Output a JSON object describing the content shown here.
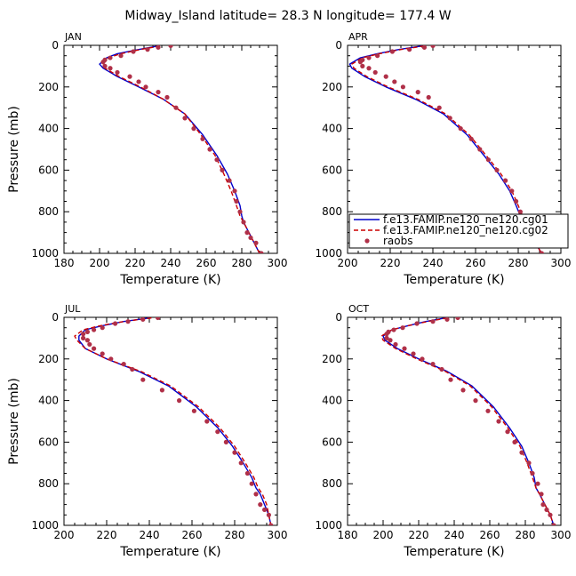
{
  "figure": {
    "title": "Midway_Island  latitude= 28.3 N longitude= 177.4 W"
  },
  "colors": {
    "model1": "#0000cc",
    "model2": "#cc0000",
    "raobs": "#b03048"
  },
  "chart_data": [
    {
      "type": "line",
      "title": "JAN",
      "xlabel": "Temperature (K)",
      "ylabel": "Pressure (mb)",
      "xlim": [
        180,
        300
      ],
      "ylim": [
        1000,
        0
      ],
      "xticks": [
        180,
        200,
        220,
        240,
        260,
        280,
        300
      ],
      "yticks": [
        0,
        200,
        400,
        600,
        800,
        1000
      ],
      "legend": null,
      "series": [
        {
          "name": "f.e13.FAMIP.ne120_ne120.cg01",
          "style": "solid",
          "x": [
            233,
            222,
            210,
            204,
            200,
            202,
            210,
            222,
            236,
            248,
            258,
            266,
            272,
            276,
            279,
            280,
            281,
            284,
            287,
            290
          ],
          "y": [
            3,
            20,
            40,
            60,
            90,
            110,
            150,
            200,
            260,
            330,
            430,
            530,
            620,
            700,
            770,
            820,
            850,
            900,
            950,
            1000
          ]
        },
        {
          "name": "f.e13.FAMIP.ne120_ne120.cg02",
          "style": "dashed",
          "x": [
            234,
            223,
            212,
            205,
            202,
            203,
            211,
            223,
            236,
            248,
            257,
            265,
            270,
            274,
            277,
            279,
            281,
            284,
            287,
            290
          ],
          "y": [
            3,
            20,
            40,
            60,
            90,
            110,
            150,
            200,
            260,
            330,
            430,
            530,
            620,
            700,
            770,
            820,
            850,
            900,
            950,
            1000
          ]
        },
        {
          "name": "raobs",
          "style": "dots",
          "x": [
            240,
            233,
            227,
            219,
            212,
            206,
            203,
            202,
            203,
            206,
            210,
            217,
            222,
            226,
            233,
            238,
            243,
            248,
            253,
            258,
            262,
            266,
            269,
            273,
            276,
            277,
            279,
            281,
            283,
            285,
            288,
            291
          ],
          "y": [
            2,
            10,
            20,
            30,
            50,
            60,
            70,
            80,
            100,
            110,
            130,
            150,
            175,
            200,
            225,
            250,
            300,
            350,
            400,
            450,
            500,
            550,
            600,
            650,
            700,
            750,
            800,
            850,
            900,
            925,
            950,
            1000
          ]
        }
      ]
    },
    {
      "type": "line",
      "title": "APR",
      "xlabel": "Temperature (K)",
      "ylabel": "",
      "xlim": [
        200,
        300
      ],
      "ylim": [
        1000,
        0
      ],
      "xticks": [
        200,
        220,
        240,
        260,
        280,
        300
      ],
      "yticks": [
        0,
        200,
        400,
        600,
        800,
        1000
      ],
      "legend": "bottom-right",
      "series": [
        {
          "name": "f.e13.FAMIP.ne120_ne120.cg01",
          "style": "solid",
          "x": [
            235,
            224,
            214,
            206,
            201,
            202,
            208,
            218,
            232,
            245,
            256,
            264,
            271,
            276,
            279,
            281,
            283,
            286,
            288,
            291
          ],
          "y": [
            3,
            20,
            40,
            60,
            90,
            110,
            150,
            200,
            260,
            330,
            430,
            530,
            620,
            700,
            770,
            820,
            850,
            900,
            950,
            1000
          ]
        },
        {
          "name": "f.e13.FAMIP.ne120_ne120.cg02",
          "style": "dashed",
          "x": [
            236,
            225,
            215,
            207,
            202,
            203,
            209,
            219,
            233,
            246,
            257,
            265,
            272,
            277,
            280,
            282,
            284,
            286,
            288,
            291
          ],
          "y": [
            3,
            20,
            40,
            60,
            90,
            110,
            150,
            200,
            260,
            330,
            430,
            530,
            620,
            700,
            770,
            820,
            850,
            900,
            950,
            1000
          ]
        },
        {
          "name": "raobs",
          "style": "dots",
          "x": [
            240,
            236,
            229,
            221,
            214,
            210,
            207,
            206,
            207,
            210,
            213,
            218,
            222,
            226,
            233,
            238,
            243,
            248,
            253,
            258,
            262,
            266,
            270,
            274,
            277,
            279,
            281,
            283,
            285,
            287,
            289,
            291
          ],
          "y": [
            2,
            10,
            20,
            30,
            50,
            60,
            70,
            80,
            100,
            110,
            130,
            150,
            175,
            200,
            225,
            250,
            300,
            350,
            400,
            450,
            500,
            550,
            600,
            650,
            700,
            750,
            800,
            850,
            900,
            925,
            950,
            1000
          ]
        }
      ]
    },
    {
      "type": "line",
      "title": "JUL",
      "xlabel": "Temperature (K)",
      "ylabel": "Pressure (mb)",
      "xlim": [
        200,
        300
      ],
      "ylim": [
        1000,
        0
      ],
      "xticks": [
        200,
        220,
        240,
        260,
        280,
        300
      ],
      "yticks": [
        0,
        200,
        400,
        600,
        800,
        1000
      ],
      "legend": null,
      "series": [
        {
          "name": "f.e13.FAMIP.ne120_ne120.cg01",
          "style": "solid",
          "x": [
            240,
            228,
            218,
            210,
            207,
            207,
            210,
            220,
            235,
            249,
            262,
            272,
            279,
            284,
            288,
            290,
            292,
            294,
            296,
            297
          ],
          "y": [
            3,
            20,
            40,
            60,
            90,
            110,
            150,
            200,
            260,
            330,
            430,
            530,
            620,
            700,
            770,
            820,
            850,
            900,
            950,
            1000
          ]
        },
        {
          "name": "f.e13.FAMIP.ne120_ne120.cg02",
          "style": "dashed",
          "x": [
            241,
            228,
            217,
            209,
            205,
            206,
            210,
            220,
            236,
            250,
            263,
            273,
            280,
            285,
            289,
            291,
            293,
            295,
            296,
            297
          ],
          "y": [
            3,
            20,
            40,
            60,
            90,
            110,
            150,
            200,
            260,
            330,
            430,
            530,
            620,
            700,
            770,
            820,
            850,
            900,
            950,
            1000
          ]
        },
        {
          "name": "raobs",
          "style": "dots",
          "x": [
            244,
            237,
            230,
            224,
            218,
            214,
            211,
            209,
            209,
            211,
            212,
            214,
            218,
            222,
            228,
            232,
            237,
            246,
            254,
            261,
            267,
            272,
            276,
            280,
            283,
            286,
            288,
            290,
            292,
            294,
            296,
            297
          ],
          "y": [
            2,
            10,
            20,
            30,
            50,
            60,
            70,
            80,
            100,
            110,
            130,
            150,
            175,
            200,
            225,
            250,
            300,
            350,
            400,
            450,
            500,
            550,
            600,
            650,
            700,
            750,
            800,
            850,
            900,
            925,
            950,
            1000
          ]
        }
      ]
    },
    {
      "type": "line",
      "title": "OCT",
      "xlabel": "Temperature (K)",
      "ylabel": "",
      "xlim": [
        180,
        300
      ],
      "ylim": [
        1000,
        0
      ],
      "xticks": [
        180,
        200,
        220,
        240,
        260,
        280,
        300
      ],
      "yticks": [
        0,
        200,
        400,
        600,
        800,
        1000
      ],
      "legend": null,
      "series": [
        {
          "name": "f.e13.FAMIP.ne120_ne120.cg01",
          "style": "solid",
          "x": [
            235,
            224,
            214,
            205,
            200,
            201,
            208,
            220,
            236,
            250,
            262,
            271,
            278,
            282,
            285,
            286,
            288,
            291,
            294,
            296
          ],
          "y": [
            3,
            20,
            40,
            60,
            90,
            110,
            150,
            200,
            260,
            330,
            430,
            530,
            620,
            700,
            770,
            820,
            850,
            900,
            950,
            1000
          ]
        },
        {
          "name": "f.e13.FAMIP.ne120_ne120.cg02",
          "style": "dashed",
          "x": [
            236,
            225,
            214,
            205,
            199,
            200,
            207,
            219,
            235,
            249,
            261,
            270,
            277,
            281,
            284,
            286,
            288,
            291,
            294,
            296
          ],
          "y": [
            3,
            20,
            40,
            60,
            90,
            110,
            150,
            200,
            260,
            330,
            430,
            530,
            620,
            700,
            770,
            820,
            850,
            900,
            950,
            1000
          ]
        },
        {
          "name": "raobs",
          "style": "dots",
          "x": [
            242,
            236,
            228,
            219,
            211,
            206,
            203,
            202,
            202,
            204,
            207,
            212,
            217,
            222,
            228,
            233,
            238,
            245,
            252,
            259,
            265,
            270,
            274,
            278,
            282,
            284,
            287,
            289,
            290,
            292,
            294,
            296
          ],
          "y": [
            2,
            10,
            20,
            30,
            50,
            60,
            70,
            80,
            100,
            110,
            130,
            150,
            175,
            200,
            225,
            250,
            300,
            350,
            400,
            450,
            500,
            550,
            600,
            650,
            700,
            750,
            800,
            850,
            900,
            925,
            950,
            1000
          ]
        }
      ]
    }
  ]
}
